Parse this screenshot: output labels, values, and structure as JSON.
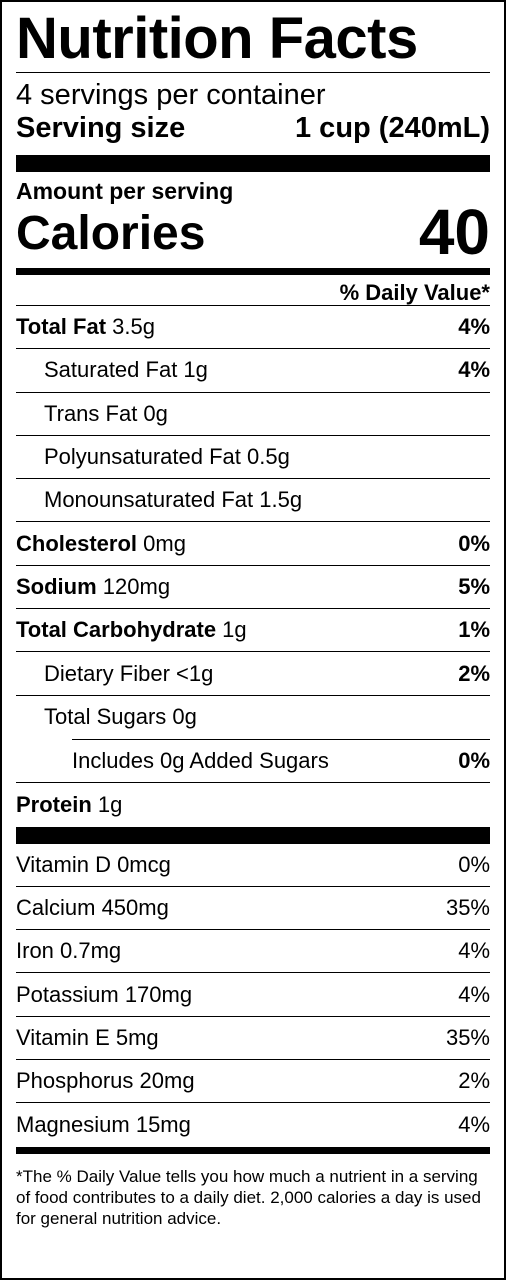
{
  "title": "Nutrition Facts",
  "servings_per_container": "4 servings per container",
  "serving_size": {
    "label": "Serving size",
    "value": "1 cup (240mL)"
  },
  "amount_per_serving": "Amount per serving",
  "calories": {
    "label": "Calories",
    "value": "40"
  },
  "daily_value_header": "% Daily Value*",
  "nutrients": {
    "total_fat": {
      "name": "Total Fat",
      "amount": " 3.5g",
      "dv": "4%"
    },
    "saturated_fat": {
      "name": "Saturated Fat 1g",
      "dv": "4%"
    },
    "trans_fat": {
      "name": "Trans Fat 0g"
    },
    "polyunsaturated_fat": {
      "name": "Polyunsaturated Fat 0.5g"
    },
    "monounsaturated_fat": {
      "name": "Monounsaturated Fat 1.5g"
    },
    "cholesterol": {
      "name": "Cholesterol",
      "amount": " 0mg",
      "dv": "0%"
    },
    "sodium": {
      "name": "Sodium",
      "amount": " 120mg",
      "dv": "5%"
    },
    "total_carbohydrate": {
      "name": "Total Carbohydrate",
      "amount": " 1g",
      "dv": "1%"
    },
    "dietary_fiber": {
      "name": "Dietary Fiber <1g",
      "dv": "2%"
    },
    "total_sugars": {
      "name": "Total Sugars 0g"
    },
    "added_sugars": {
      "name": "Includes 0g Added Sugars",
      "dv": "0%"
    },
    "protein": {
      "name": "Protein",
      "amount": " 1g"
    }
  },
  "vitamins": [
    {
      "name": "Vitamin D 0mcg",
      "dv": "0%"
    },
    {
      "name": "Calcium 450mg",
      "dv": "35%"
    },
    {
      "name": "Iron 0.7mg",
      "dv": "4%"
    },
    {
      "name": "Potassium 170mg",
      "dv": "4%"
    },
    {
      "name": "Vitamin E 5mg",
      "dv": "35%"
    },
    {
      "name": "Phosphorus 20mg",
      "dv": "2%"
    },
    {
      "name": "Magnesium 15mg",
      "dv": "4%"
    }
  ],
  "footnote": "*The % Daily Value tells you how much a nutrient in a serving of food contributes to a daily diet. 2,000 calories a day is used for general nutrition advice."
}
